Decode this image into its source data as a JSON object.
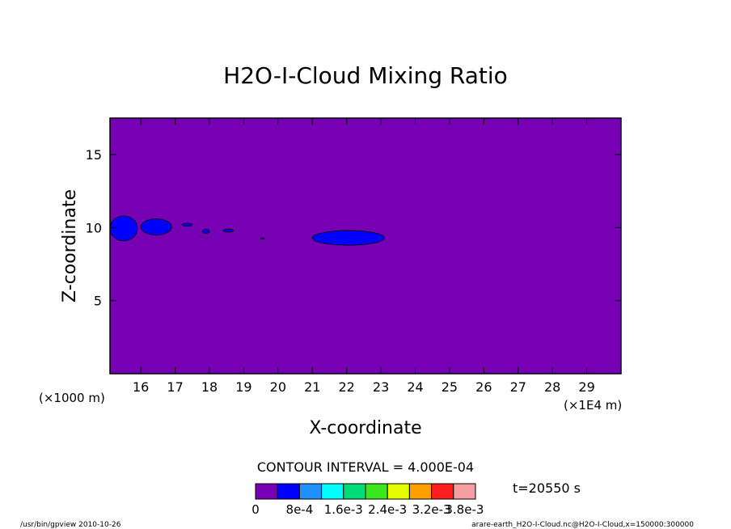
{
  "chart_data": {
    "type": "heatmap",
    "title": "H2O-I-Cloud Mixing Ratio",
    "xlabel": "X-coordinate",
    "ylabel": "Z-coordinate",
    "x_unit_note": "(×1E4 m)",
    "y_unit_note": "(×1000 m)",
    "xlim": [
      15.1,
      30.0
    ],
    "ylim": [
      0.0,
      17.5
    ],
    "x_ticks": [
      16,
      17,
      18,
      19,
      20,
      21,
      22,
      23,
      24,
      25,
      26,
      27,
      28,
      29
    ],
    "y_ticks": [
      5,
      10,
      15
    ],
    "background_level": "0 to 8e-4",
    "regions": [
      {
        "level": "8e-4 to 1.6e-3",
        "x_range": [
          15.1,
          15.9
        ],
        "z_range": [
          9.1,
          10.8
        ]
      },
      {
        "level": "8e-4 to 1.6e-3",
        "x_range": [
          16.0,
          16.9
        ],
        "z_range": [
          9.5,
          10.6
        ]
      },
      {
        "level": "8e-4 to 1.6e-3",
        "x_range": [
          17.2,
          17.5
        ],
        "z_range": [
          10.1,
          10.3
        ]
      },
      {
        "level": "8e-4 to 1.6e-3",
        "x_range": [
          17.8,
          18.0
        ],
        "z_range": [
          9.6,
          9.9
        ]
      },
      {
        "level": "8e-4 to 1.6e-3",
        "x_range": [
          18.4,
          18.7
        ],
        "z_range": [
          9.7,
          9.9
        ]
      },
      {
        "level": "8e-4 to 1.6e-3",
        "x_range": [
          19.5,
          19.6
        ],
        "z_range": [
          9.2,
          9.3
        ]
      },
      {
        "level": "8e-4 to 1.6e-3",
        "x_range": [
          21.0,
          23.1
        ],
        "z_range": [
          8.8,
          9.8
        ]
      }
    ],
    "contour_interval_text": "CONTOUR INTERVAL = 4.000E-04",
    "colorbar": {
      "colors": [
        "#7800b4",
        "#0000ff",
        "#1e90ff",
        "#00ffff",
        "#00dc78",
        "#3ce61e",
        "#e6ff00",
        "#ffa000",
        "#ff1e1e",
        "#f5a0a0"
      ],
      "labels": [
        "0",
        "8e-4",
        "1.6e-3",
        "2.4e-3",
        "3.2e-3",
        "3.8e-3"
      ]
    },
    "time_label": "t=20550 s",
    "colors": {
      "fill_background": "#7800b4",
      "fill_region": "#0000ff"
    }
  },
  "footer": {
    "left": "/usr/bin/gpview  2010-10-26",
    "right": "arare-earth_H2O-I-Cloud.nc@H2O-I-Cloud,x=150000:300000"
  }
}
